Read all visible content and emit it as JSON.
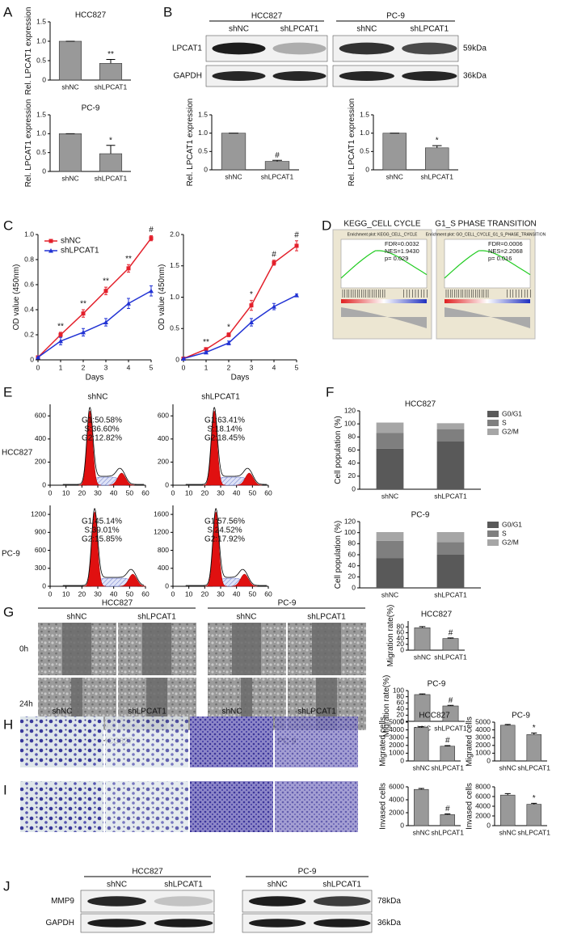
{
  "panels": {
    "A": {
      "label": "A",
      "charts": [
        {
          "type": "bar",
          "title": "HCC827",
          "ylabel": "Rel. LPCAT1 expression",
          "categories": [
            "shNC",
            "shLPCAT1"
          ],
          "values": [
            1,
            0.43
          ],
          "errors": [
            0,
            0.1
          ],
          "significance": "**",
          "ylim": [
            0,
            1.5
          ],
          "yticks": [
            0,
            0.5,
            {
              "value": 1,
              "label": "1.0"
            },
            1.5
          ],
          "color": "#999999"
        },
        {
          "type": "bar",
          "title": "PC-9",
          "ylabel": "Rel. LPCAT1 expression",
          "categories": [
            "shNC",
            "shLPCAT1"
          ],
          "values": [
            1,
            0.47
          ],
          "errors": [
            0,
            0.22
          ],
          "significance": "*",
          "ylim": [
            0,
            1.5
          ],
          "yticks": [
            0,
            0.5,
            {
              "value": 1,
              "label": "1.0"
            },
            1.5
          ],
          "color": "#999999"
        }
      ]
    },
    "B": {
      "label": "B",
      "blot": {
        "groups": [
          {
            "name": "HCC827",
            "lanes": [
              "shNC",
              "shLPCAT1"
            ]
          },
          {
            "name": "PC-9",
            "lanes": [
              "shNC",
              "shLPCAT1"
            ]
          }
        ],
        "rows": [
          {
            "name": "LPCAT1",
            "size": "59kDa"
          },
          {
            "name": "GAPDH",
            "size": "36kDa"
          }
        ]
      },
      "charts": [
        {
          "type": "bar",
          "ylabel": "Rel. LPCAT1 expression",
          "categories": [
            "shNC",
            "shLPCAT1"
          ],
          "values": [
            1,
            0.23
          ],
          "errors": [
            0,
            0.03
          ],
          "significance": "#",
          "ylim": [
            0,
            1.5
          ],
          "yticks": [
            0,
            0.5,
            {
              "value": 1,
              "label": "1.0"
            },
            1.5
          ],
          "color": "#999999"
        },
        {
          "type": "bar",
          "ylabel": "Rel. LPCAT1 expression",
          "categories": [
            "shNC",
            "shLPCAT1"
          ],
          "values": [
            1,
            0.6
          ],
          "errors": [
            0,
            0.06
          ],
          "significance": "*",
          "ylim": [
            0,
            1.5
          ],
          "yticks": [
            0,
            0.5,
            {
              "value": 1,
              "label": "1.0"
            },
            1.5
          ],
          "color": "#999999"
        }
      ]
    },
    "C": {
      "label": "C",
      "charts": [
        {
          "type": "line",
          "xlabel": "Days",
          "ylabel": "OD value (450nm)",
          "x": [
            0,
            1,
            2,
            3,
            4,
            5
          ],
          "xlim": [
            0,
            5
          ],
          "xticks": [
            0,
            1,
            2,
            3,
            4,
            5
          ],
          "ylim": [
            0,
            1
          ],
          "yticks": [
            0,
            0.2,
            0.4,
            0.6,
            0.8,
            {
              "value": 1,
              "label": "1.0"
            }
          ],
          "legend": "upper left",
          "series": [
            {
              "name": "shNC",
              "color": "#e3202b",
              "values": [
                0.02,
                0.2,
                0.37,
                0.55,
                0.73,
                0.97
              ],
              "errors": [
                0,
                0.02,
                0.03,
                0.03,
                0.03,
                0.02
              ]
            },
            {
              "name": "shLPCAT1",
              "color": "#2233d4",
              "values": [
                0.02,
                0.15,
                0.22,
                0.3,
                0.45,
                0.55
              ],
              "errors": [
                0,
                0.03,
                0.03,
                0.03,
                0.04,
                0.04
              ]
            }
          ],
          "annotations": [
            {
              "x": 1,
              "text": "**"
            },
            {
              "x": 2,
              "text": "**"
            },
            {
              "x": 3,
              "text": "**"
            },
            {
              "x": 4,
              "text": "**"
            },
            {
              "x": 5,
              "text": "#"
            }
          ]
        },
        {
          "type": "line",
          "xlabel": "Days",
          "ylabel": "OD value (450nm)",
          "x": [
            0,
            1,
            2,
            3,
            4,
            5
          ],
          "xlim": [
            0,
            5
          ],
          "xticks": [
            0,
            1,
            2,
            3,
            4,
            5
          ],
          "ylim": [
            0,
            2
          ],
          "yticks": [
            0,
            0.5,
            {
              "value": 1,
              "label": "1.0"
            },
            1.5,
            {
              "value": 2,
              "label": "2.0"
            }
          ],
          "series": [
            {
              "color": "#e3202b",
              "values": [
                0.02,
                0.17,
                0.4,
                0.87,
                1.55,
                1.82
              ],
              "errors": [
                0,
                0.02,
                0.03,
                0.08,
                0.04,
                0.08
              ]
            },
            {
              "color": "#2233d4",
              "values": [
                0.02,
                0.12,
                0.27,
                0.6,
                0.85,
                1.03
              ],
              "errors": [
                0,
                0.02,
                0.03,
                0.06,
                0.05,
                0.02
              ]
            }
          ],
          "annotations": [
            {
              "x": 1,
              "text": "**"
            },
            {
              "x": 2,
              "text": "*"
            },
            {
              "x": 3,
              "text": "*"
            },
            {
              "x": 4,
              "text": "#"
            },
            {
              "x": 5,
              "text": "#"
            }
          ]
        }
      ]
    },
    "D": {
      "label": "D",
      "plots": [
        {
          "title": "KEGG_CELL CYCLE",
          "heading": "Enrichment plot: KEGG_CELL_CYCLE",
          "stats": [
            "FDR=0.0032",
            "NES=1.9430",
            "p= 0.029"
          ]
        },
        {
          "title": "G1_S PHASE TRANSITION",
          "heading": "Enrichment plot: GO_CELL_CYCLE_G1_S_PHASE_TRANSITION",
          "stats": [
            "FDR=0.0006",
            "NES=2.2068",
            "p=  0.016"
          ]
        }
      ]
    },
    "E": {
      "label": "E",
      "columns": [
        "shNC",
        "shLPCAT1"
      ],
      "rows": [
        "HCC827",
        "PC-9"
      ],
      "plots": [
        {
          "xlim": [
            0,
            60
          ],
          "xticks": [
            0,
            10,
            20,
            30,
            40,
            50,
            60
          ],
          "ylim": [
            0,
            700
          ],
          "yticks": [
            0,
            200,
            400,
            600
          ],
          "stats": [
            "G1:50.58%",
            "S:36.60%",
            "G2:12.82%"
          ]
        },
        {
          "xlim": [
            0,
            60
          ],
          "xticks": [
            0,
            10,
            20,
            30,
            40,
            50,
            60
          ],
          "ylim": [
            0,
            700
          ],
          "yticks": [
            0,
            200,
            400,
            600
          ],
          "stats": [
            "G1:63.41%",
            "S:18.14%",
            "G2:18.45%"
          ]
        },
        {
          "xlim": [
            0,
            60
          ],
          "xticks": [
            0,
            10,
            20,
            30,
            40,
            50,
            60
          ],
          "ylim": [
            0,
            1350
          ],
          "yticks": [
            0,
            300,
            600,
            900,
            1200
          ],
          "stats": [
            "G1:45.14%",
            "S:39.01%",
            "G2:15.85%"
          ]
        },
        {
          "xlim": [
            0,
            60
          ],
          "xticks": [
            0,
            10,
            20,
            30,
            40,
            50,
            60
          ],
          "ylim": [
            0,
            1800
          ],
          "yticks": [
            0,
            400,
            800,
            1200,
            1600
          ],
          "stats": [
            "G1:57.56%",
            "S:24.52%",
            "G2:17.92%"
          ]
        }
      ]
    },
    "F": {
      "label": "F",
      "charts": [
        {
          "type": "stacked_bar",
          "title": "HCC827",
          "ylabel": "Cell population (%)",
          "categories": [
            "shNC",
            "shLPCAT1"
          ],
          "ylim": [
            0,
            120
          ],
          "yticks": [
            0,
            20,
            40,
            60,
            80,
            100,
            120
          ],
          "legend": "upper right",
          "series": [
            {
              "name": "G0/G1",
              "color": "#595959",
              "values": [
                62,
                73
              ]
            },
            {
              "name": "S",
              "color": "#7f7f7f",
              "values": [
                24,
                19
              ]
            },
            {
              "name": "G2/M",
              "color": "#a6a6a6",
              "values": [
                16,
                9
              ]
            }
          ]
        },
        {
          "type": "stacked_bar",
          "title": "PC-9",
          "ylabel": "Cell population (%)",
          "categories": [
            "shNC",
            "shLPCAT1"
          ],
          "ylim": [
            0,
            120
          ],
          "yticks": [
            0,
            20,
            40,
            60,
            80,
            100,
            120
          ],
          "legend": "upper right",
          "series": [
            {
              "name": "G0/G1",
              "color": "#595959",
              "values": [
                54,
                60
              ]
            },
            {
              "name": "S",
              "color": "#7f7f7f",
              "values": [
                31,
                23
              ]
            },
            {
              "name": "G2/M",
              "color": "#a6a6a6",
              "values": [
                16,
                18
              ]
            }
          ]
        }
      ]
    },
    "G": {
      "label": "G",
      "groups": [
        "HCC827",
        "PC-9"
      ],
      "lanes": [
        "shNC",
        "shLPCAT1"
      ],
      "times": [
        "0h",
        "24h"
      ],
      "charts": [
        {
          "type": "bar",
          "title": "HCC827",
          "ylabel": "Migration rate(%)",
          "categories": [
            "shNC",
            "shLPCAT1"
          ],
          "values": [
            77,
            40
          ],
          "errors": [
            4,
            2
          ],
          "significance": "#",
          "ylim": [
            0,
            100
          ],
          "yticks": [
            0,
            20,
            40,
            60,
            80
          ],
          "color": "#999999"
        },
        {
          "type": "bar",
          "title": "PC-9",
          "ylabel": "Migration rate(%)",
          "categories": [
            "shNC",
            "shLPCAT1"
          ],
          "values": [
            87,
            50
          ],
          "errors": [
            2,
            2
          ],
          "significance": "#",
          "ylim": [
            0,
            100
          ],
          "yticks": [
            0,
            20,
            40,
            60,
            80,
            100
          ],
          "color": "#999999"
        }
      ]
    },
    "H": {
      "label": "H",
      "groups": [
        "HCC827",
        "PC-9"
      ],
      "lanes": [
        "shNC",
        "shLPCAT1"
      ],
      "charts": [
        {
          "type": "bar",
          "title": "HCC827",
          "ylabel": "Migrated cells",
          "categories": [
            "shNC",
            "shLPCAT1"
          ],
          "values": [
            4300,
            1900
          ],
          "errors": [
            120,
            80
          ],
          "significance": "#",
          "ylim": [
            0,
            5000
          ],
          "yticks": [
            0,
            1000,
            2000,
            3000,
            4000,
            5000
          ],
          "color": "#999999"
        },
        {
          "type": "bar",
          "title": "PC-9",
          "ylabel": "Migrated cells",
          "categories": [
            "shNC",
            "shLPCAT1"
          ],
          "values": [
            4600,
            3400
          ],
          "errors": [
            100,
            200
          ],
          "significance": "*",
          "ylim": [
            0,
            5000
          ],
          "yticks": [
            0,
            1000,
            2000,
            3000,
            4000,
            5000
          ],
          "color": "#999999"
        }
      ]
    },
    "I": {
      "label": "I",
      "charts": [
        {
          "type": "bar",
          "ylabel": "Invased cells",
          "categories": [
            "shNC",
            "shLPCAT1"
          ],
          "values": [
            5600,
            1700
          ],
          "errors": [
            150,
            120
          ],
          "significance": "#",
          "ylim": [
            0,
            6000
          ],
          "yticks": [
            0,
            2000,
            4000,
            6000
          ],
          "color": "#999999"
        },
        {
          "type": "bar",
          "ylabel": "Invased cells",
          "categories": [
            "shNC",
            "shLPCAT1"
          ],
          "values": [
            6300,
            4400
          ],
          "errors": [
            300,
            200
          ],
          "significance": "*",
          "ylim": [
            0,
            8000
          ],
          "yticks": [
            0,
            2000,
            4000,
            6000,
            8000
          ],
          "color": "#999999"
        }
      ]
    },
    "J": {
      "label": "J",
      "blot": {
        "groups": [
          {
            "name": "HCC827",
            "lanes": [
              "shNC",
              "shLPCAT1"
            ]
          },
          {
            "name": "PC-9",
            "lanes": [
              "shNC",
              "shLPCAT1"
            ]
          }
        ],
        "rows": [
          {
            "name": "MMP9",
            "size": "78kDa"
          },
          {
            "name": "GAPDH",
            "size": "36kDa"
          }
        ]
      }
    }
  }
}
